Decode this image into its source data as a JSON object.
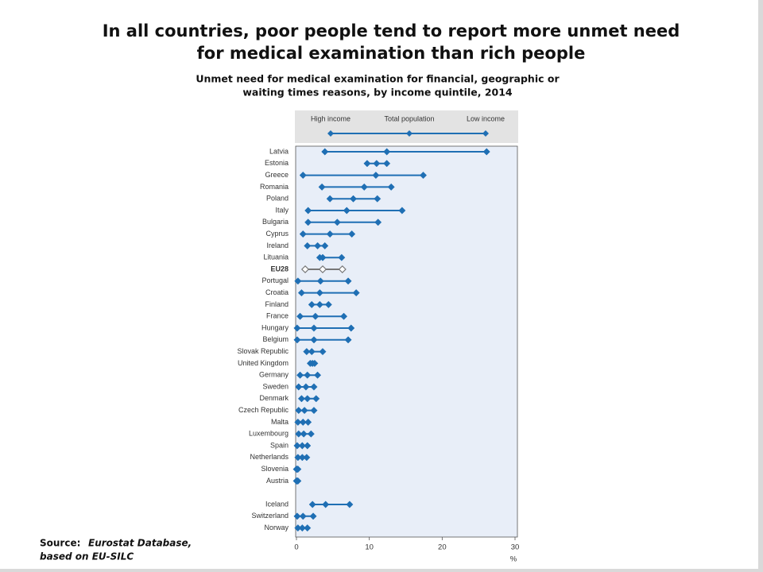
{
  "chart_data": {
    "type": "dumbbell",
    "title": [
      "In all countries, poor people tend to report more unmet need",
      "for medical examination than rich people"
    ],
    "subtitle": [
      "Unmet need for medical examination for financial, geographic or",
      "waiting times reasons, by income quintile, 2014"
    ],
    "categories": [
      "Latvia",
      "Estonia",
      "Greece",
      "Romania",
      "Poland",
      "Italy",
      "Bulgaria",
      "Cyprus",
      "Ireland",
      "Lituania",
      "EU28",
      "Portugal",
      "Croatia",
      "Finland",
      "France",
      "Hungary",
      "Belgium",
      "Slovak Republic",
      "United Kingdom",
      "Germany",
      "Sweden",
      "Denmark",
      "Czech Republic",
      "Malta",
      "Luxembourg",
      "Spain",
      "Netherlands",
      "Slovenia",
      "Austria",
      null,
      "Iceland",
      "Switzerland",
      "Norway"
    ],
    "series": [
      {
        "name": "High income",
        "color": "#1f6fb4",
        "values": [
          3.9,
          9.7,
          0.9,
          3.5,
          4.6,
          1.6,
          1.6,
          0.9,
          1.5,
          3.2,
          1.2,
          0.2,
          0.7,
          2.1,
          0.5,
          0.1,
          0.1,
          1.4,
          1.9,
          0.5,
          0.3,
          0.7,
          0.3,
          0.2,
          0.3,
          0.1,
          0.2,
          0.0,
          0.0,
          null,
          2.2,
          0.1,
          0.2
        ]
      },
      {
        "name": "Total population",
        "color": "#1f6fb4",
        "values": [
          12.4,
          11.0,
          10.9,
          9.3,
          7.8,
          6.9,
          5.6,
          4.6,
          2.9,
          3.6,
          3.6,
          3.3,
          3.2,
          3.2,
          2.6,
          2.4,
          2.4,
          2.1,
          2.2,
          1.5,
          1.3,
          1.5,
          1.1,
          0.9,
          1.0,
          0.8,
          0.8,
          0.1,
          0.1,
          null,
          4.0,
          0.9,
          0.8
        ]
      },
      {
        "name": "Low income",
        "color": "#1f6fb4",
        "values": [
          26.1,
          12.4,
          17.4,
          13.0,
          11.1,
          14.5,
          11.2,
          7.6,
          3.9,
          6.2,
          6.3,
          7.1,
          8.2,
          4.4,
          6.5,
          7.5,
          7.1,
          3.6,
          2.5,
          2.9,
          2.4,
          2.7,
          2.4,
          1.6,
          2.0,
          1.5,
          1.4,
          0.2,
          0.2,
          null,
          7.3,
          2.3,
          1.5
        ]
      }
    ],
    "highlight": "EU28",
    "xlim": [
      0,
      30
    ],
    "xticks": [
      0,
      10,
      20,
      30
    ],
    "xlabel": "%",
    "source": {
      "label": "Source:",
      "lines": [
        "Eurostat Database,",
        "based on EU-SILC"
      ]
    }
  }
}
